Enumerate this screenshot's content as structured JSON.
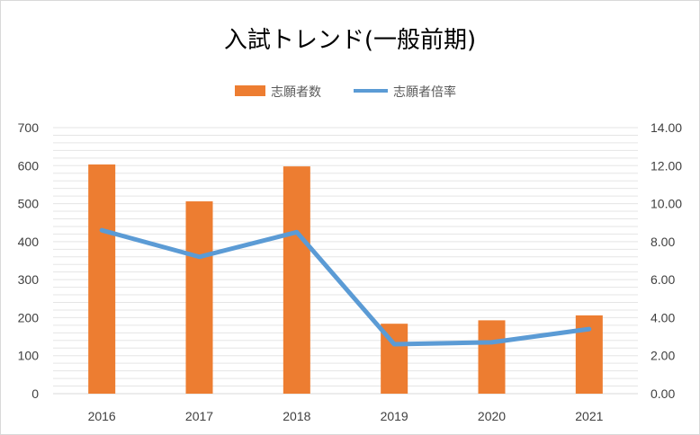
{
  "chart_data": {
    "type": "bar+line",
    "title": "入試トレンド(一般前期)",
    "categories": [
      "2016",
      "2017",
      "2018",
      "2019",
      "2020",
      "2021"
    ],
    "series": [
      {
        "name": "志願者数",
        "type": "bar",
        "axis": "left",
        "color": "#ED7D31",
        "values": [
          603,
          506,
          598,
          184,
          193,
          206
        ]
      },
      {
        "name": "志願者倍率",
        "type": "line",
        "axis": "right",
        "color": "#5B9BD5",
        "values": [
          8.6,
          7.2,
          8.5,
          2.6,
          2.7,
          3.4
        ]
      }
    ],
    "y_left": {
      "min": 0,
      "max": 700,
      "step": 100,
      "tick_labels": [
        "0",
        "100",
        "200",
        "300",
        "400",
        "500",
        "600",
        "700"
      ]
    },
    "y_right": {
      "min": 0,
      "max": 14,
      "step": 2,
      "tick_labels": [
        "0.00",
        "2.00",
        "4.00",
        "6.00",
        "8.00",
        "10.00",
        "12.00",
        "14.00"
      ]
    },
    "legend_position": "top",
    "grid": true,
    "gridline_color": "#e5e5e5"
  }
}
